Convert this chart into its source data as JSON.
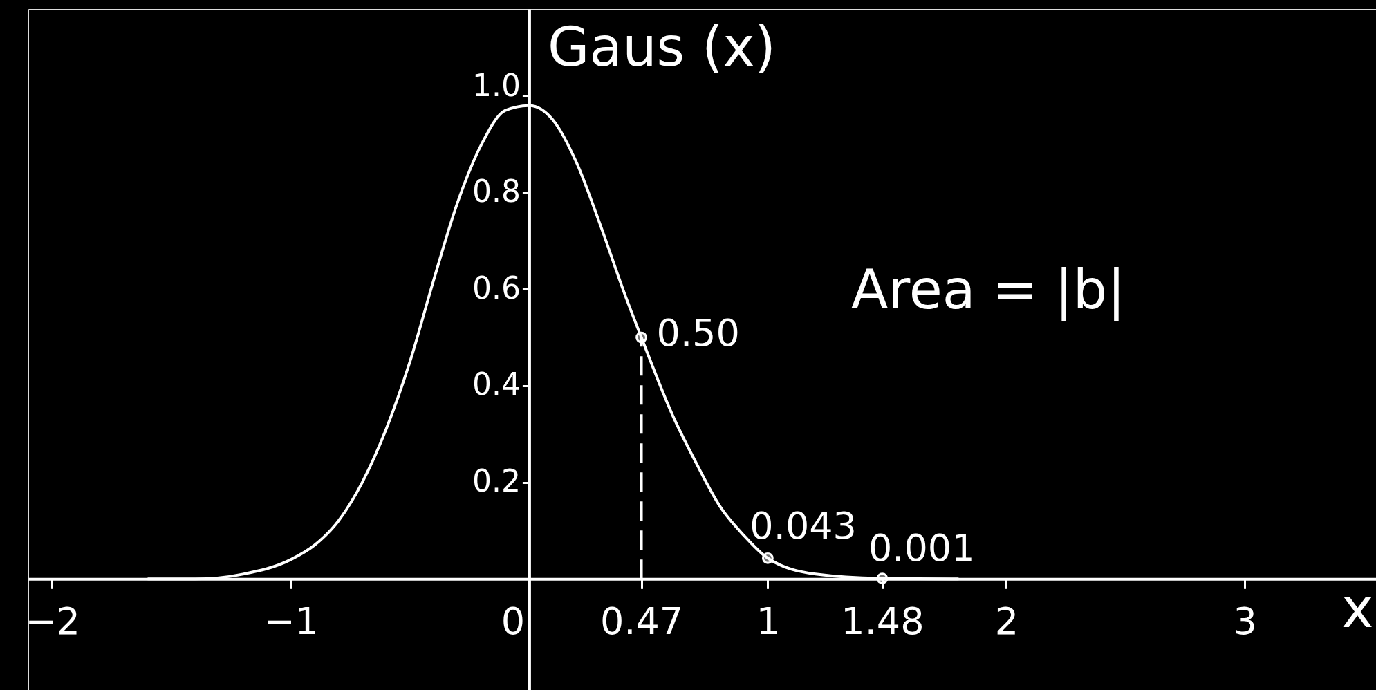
{
  "chart_data": {
    "type": "line",
    "xlabel": "x",
    "ylabel": "Gaus (x)",
    "annotations": [
      "Area = |b|"
    ],
    "xlim": [
      -2.1,
      3.55
    ],
    "ylim": [
      -0.23,
      1.18
    ],
    "xticks": [
      -2,
      -1,
      0,
      0.47,
      1,
      1.48,
      2,
      3
    ],
    "yticks": [
      0.2,
      0.4,
      0.6,
      0.8,
      {
        "value": 1,
        "label": "1.0"
      }
    ],
    "series": [
      {
        "color": "#ffffff",
        "x": [
          -1.6,
          -1.4,
          -1.2,
          -1.0,
          -0.9,
          -0.8,
          -0.7,
          -0.6,
          -0.5,
          -0.4,
          -0.3,
          -0.2,
          -0.1,
          0,
          0.1,
          0.2,
          0.3,
          0.4,
          0.47,
          0.6,
          0.7,
          0.8,
          0.9,
          1.0,
          1.2,
          1.48,
          1.8
        ],
        "values": [
          0,
          0,
          0.01,
          0.04,
          0.07,
          0.12,
          0.2,
          0.31,
          0.45,
          0.62,
          0.78,
          0.9,
          0.97,
          0.98,
          0.95,
          0.86,
          0.73,
          0.59,
          0.5,
          0.34,
          0.24,
          0.15,
          0.09,
          0.043,
          0.01,
          0.001,
          0
        ]
      },
      {
        "color": "#ffffff",
        "line_style": "dashed",
        "x": [
          0.47,
          0.47
        ],
        "values": [
          0,
          0.5
        ]
      },
      {
        "type": "scatter",
        "color": "#ffffff",
        "marker": "circle",
        "x": [
          0.47,
          1,
          1.48
        ],
        "values": [
          0.5,
          0.043,
          0.001
        ],
        "value_labels": [
          "0.50",
          "0.043",
          "0.001"
        ]
      }
    ]
  }
}
